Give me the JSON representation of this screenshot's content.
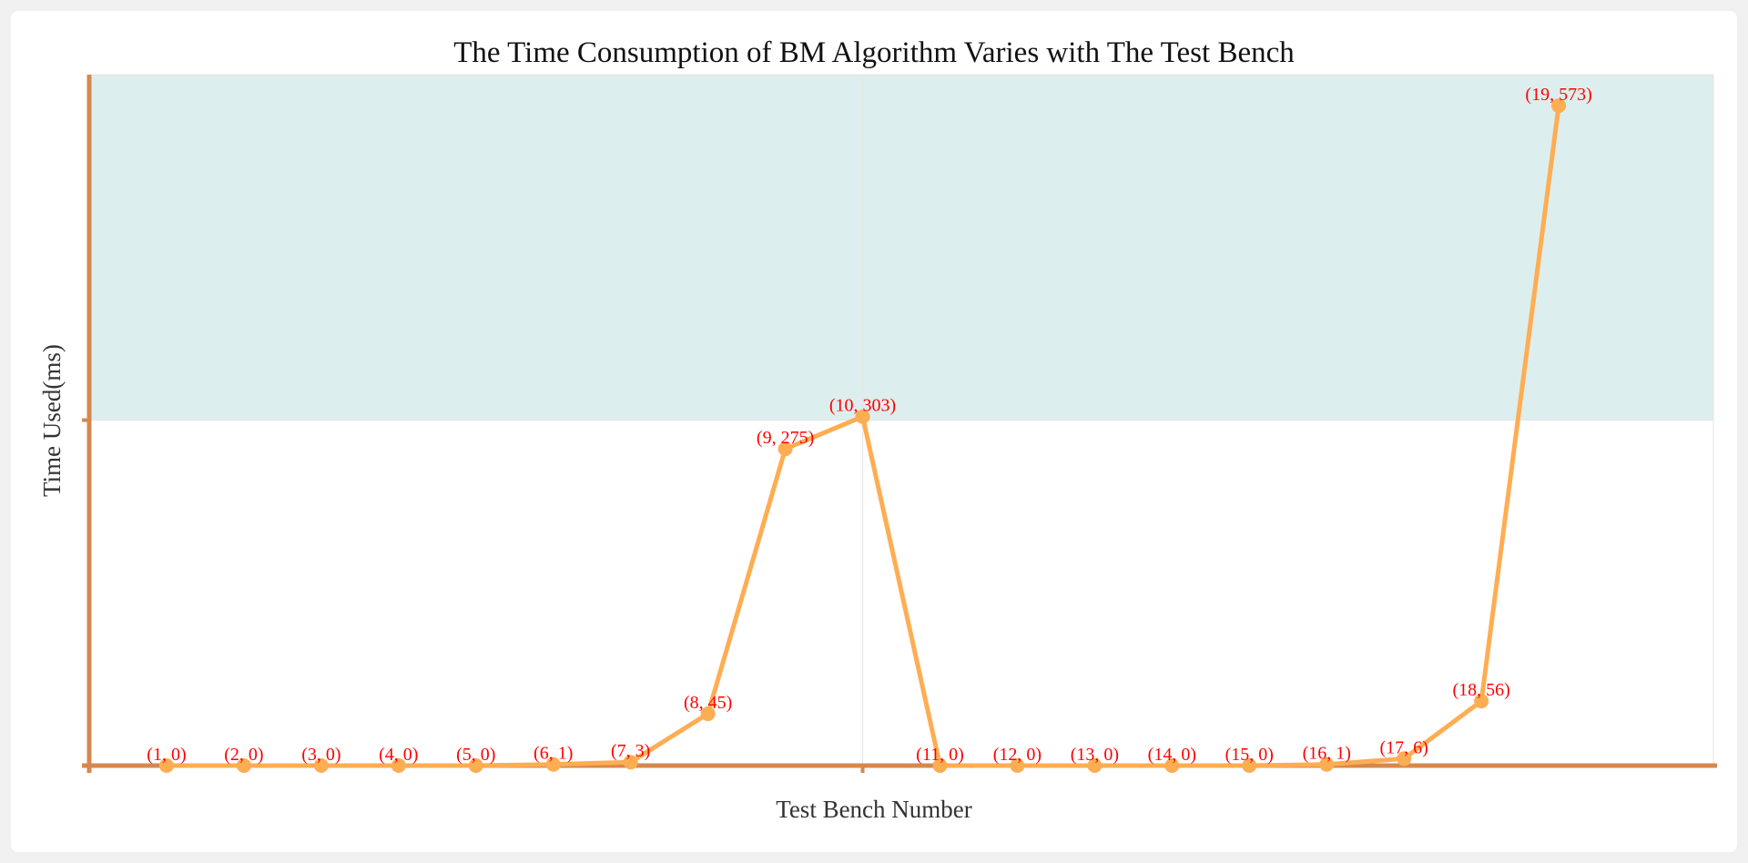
{
  "chart_data": {
    "type": "line",
    "title": "The Time Consumption of BM Algorithm Varies with The Test Bench",
    "xlabel": "Test Bench Number",
    "ylabel": "Time Used(ms)",
    "xlim": [
      0,
      21
    ],
    "ylim": [
      0,
      600
    ],
    "grid": true,
    "shaded_band": {
      "y_from": 300,
      "y_to": 600,
      "color": "#ddeeee"
    },
    "x": [
      1,
      2,
      3,
      4,
      5,
      6,
      7,
      8,
      9,
      10,
      11,
      12,
      13,
      14,
      15,
      16,
      17,
      18,
      19
    ],
    "y": [
      0,
      0,
      0,
      0,
      0,
      1,
      3,
      45,
      275,
      303,
      0,
      0,
      0,
      0,
      0,
      1,
      6,
      56,
      573
    ],
    "labels": [
      "(1, 0)",
      "(2, 0)",
      "(3, 0)",
      "(4, 0)",
      "(5, 0)",
      "(6, 1)",
      "(7, 3)",
      "(8, 45)",
      "(9, 275)",
      "(10, 303)",
      "(11, 0)",
      "(12, 0)",
      "(13, 0)",
      "(14, 0)",
      "(15, 0)",
      "(16, 1)",
      "(17, 6)",
      "(18, 56)",
      "(19, 573)"
    ],
    "colors": {
      "line": "#ffad52",
      "axis": "#d4884f",
      "label": "#ff0000"
    }
  }
}
